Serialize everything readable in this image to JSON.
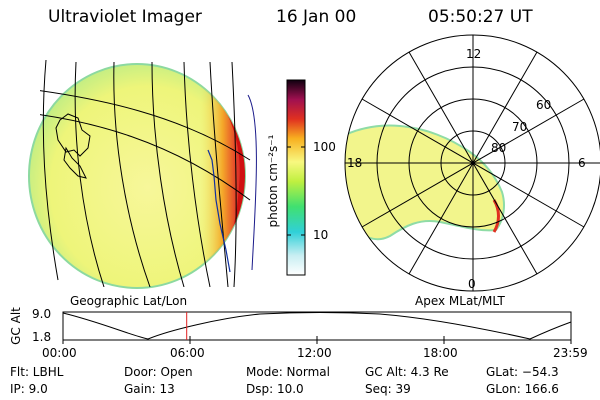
{
  "header": {
    "title": "Ultraviolet Imager",
    "date": "16 Jan 00",
    "time": "05:50:27 UT"
  },
  "colorbar": {
    "unit_label": "photon cm⁻²s⁻¹",
    "tick_100": "100",
    "tick_10": "10"
  },
  "left_panel": {
    "label": "Geographic Lat/Lon"
  },
  "right_panel": {
    "label": "Apex MLat/MLT",
    "mlt_labels": {
      "top": "12",
      "left": "18",
      "right": "6",
      "bottom": "0"
    },
    "lat_labels": [
      "60",
      "70",
      "80"
    ]
  },
  "altitude_plot": {
    "ylabel": "GC Alt",
    "y_ticks": [
      "9.0",
      "1.8"
    ],
    "x_ticks": [
      "00:00",
      "06:00",
      "12:00",
      "18:00",
      "23:59"
    ],
    "current_time_hours": 5.84
  },
  "info": {
    "flt": "Flt: LBHL",
    "ip": "IP:  9.0",
    "door": "Door: Open",
    "gain": "Gain: 13",
    "mode": "Mode: Normal",
    "dsp": "Dsp:    10.0",
    "gc_alt": "GC Alt: 4.3 Re",
    "seq": "Seq: 39",
    "glat": "GLat: −54.3",
    "glon": "GLon: 166.6"
  }
}
